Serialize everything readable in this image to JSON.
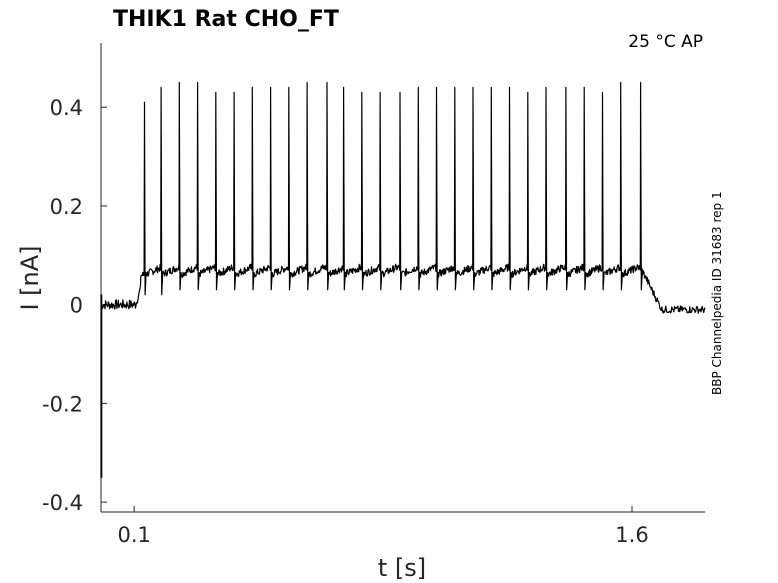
{
  "chart_data": {
    "type": "line",
    "title": "THIK1  Rat  CHO_FT",
    "condition": "25 °C  AP",
    "side_note": "BBP Channelpedia ID 31683 rep 1",
    "xlabel": "t [s]",
    "ylabel": "I [nA]",
    "xlim": [
      0.0,
      1.82
    ],
    "ylim": [
      -0.42,
      0.53
    ],
    "x_ticks": [
      0.1,
      1.6
    ],
    "x_tick_labels": [
      "0.1",
      "1.6"
    ],
    "y_ticks": [
      -0.4,
      -0.2,
      0,
      0.2,
      0.4
    ],
    "y_tick_labels": [
      "-0.4",
      "-0.2",
      "0",
      "0.2",
      "0.4"
    ],
    "grid": false,
    "series": [
      {
        "color": "#000000",
        "baseline_before": 0.0,
        "baseline_after": -0.01,
        "stimulus_start": 0.105,
        "stimulus_end": 1.63,
        "plateau": 0.07,
        "spike_times": [
          0.13,
          0.18,
          0.235,
          0.29,
          0.345,
          0.4,
          0.455,
          0.51,
          0.565,
          0.62,
          0.68,
          0.73,
          0.785,
          0.84,
          0.9,
          0.955,
          1.01,
          1.065,
          1.12,
          1.175,
          1.23,
          1.285,
          1.34,
          1.4,
          1.455,
          1.51,
          1.565,
          1.625
        ],
        "spike_peaks": [
          0.41,
          0.44,
          0.45,
          0.45,
          0.43,
          0.43,
          0.44,
          0.44,
          0.44,
          0.45,
          0.45,
          0.44,
          0.43,
          0.43,
          0.43,
          0.44,
          0.44,
          0.44,
          0.44,
          0.44,
          0.44,
          0.43,
          0.44,
          0.44,
          0.44,
          0.43,
          0.45,
          0.45
        ],
        "spike_troughs": [
          0.02,
          0.02,
          0.03,
          0.03,
          0.03,
          0.03,
          0.03,
          0.03,
          0.03,
          0.03,
          0.03,
          0.03,
          0.03,
          0.03,
          0.03,
          0.03,
          0.03,
          0.03,
          0.03,
          0.03,
          0.03,
          0.03,
          0.03,
          0.03,
          0.03,
          0.03,
          0.03,
          0.03
        ]
      }
    ]
  }
}
